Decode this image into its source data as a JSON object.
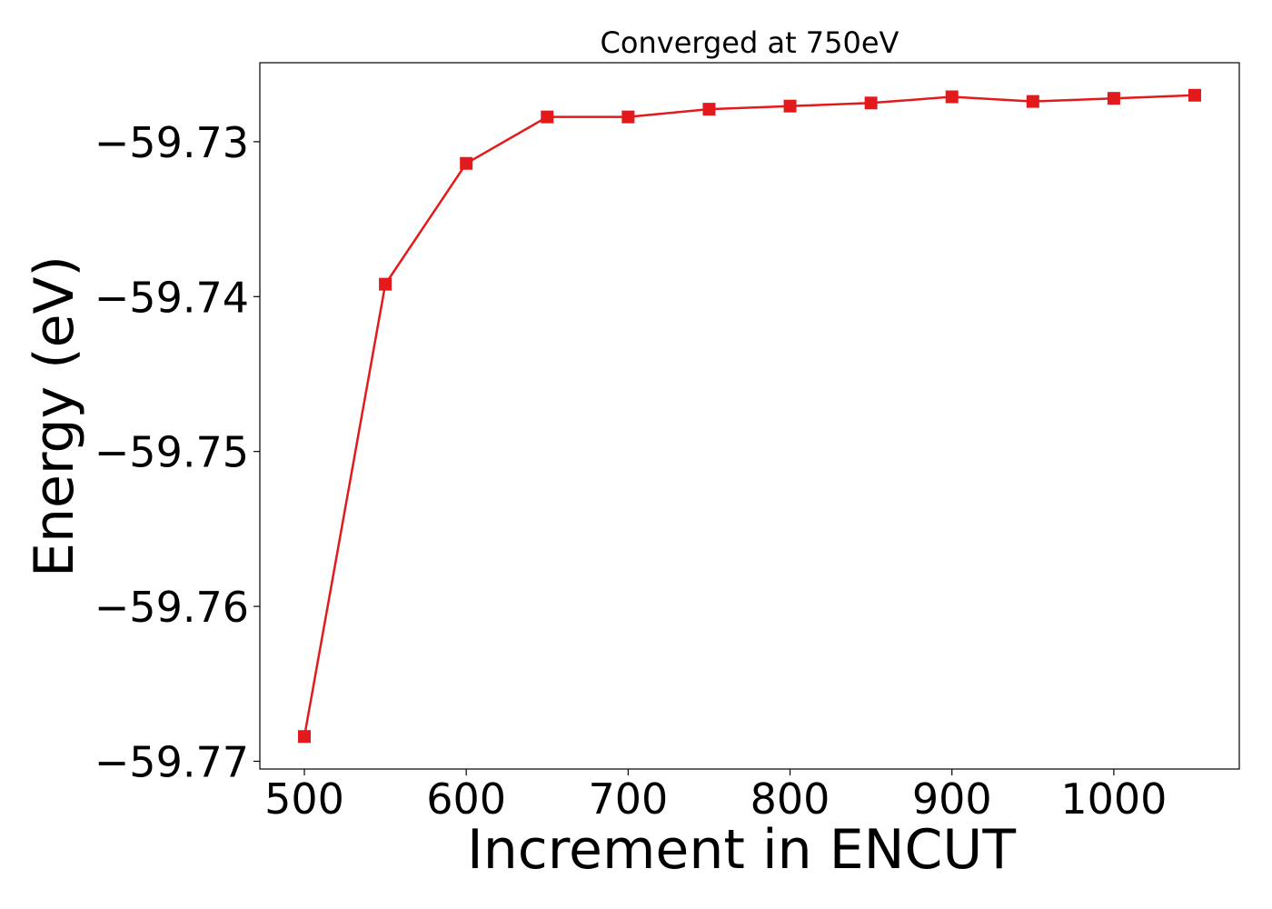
{
  "chart_data": {
    "type": "line",
    "title": "Converged at 750eV",
    "xlabel": "Increment in ENCUT",
    "ylabel": "Energy (eV)",
    "x": [
      500,
      550,
      600,
      650,
      700,
      750,
      800,
      850,
      900,
      950,
      1000,
      1050
    ],
    "series": [
      {
        "values": [
          -59.7684,
          -59.7392,
          -59.7314,
          -59.7284,
          -59.7284,
          -59.7279,
          -59.7277,
          -59.7275,
          -59.7271,
          -59.7274,
          -59.7272,
          -59.727
        ],
        "color": "#e31a1c",
        "marker": "square"
      }
    ],
    "xticks": [
      500,
      600,
      700,
      800,
      900,
      1000
    ],
    "xtick_labels": [
      "500",
      "600",
      "700",
      "800",
      "900",
      "1000"
    ],
    "yticks": [
      -59.73,
      -59.74,
      -59.75,
      -59.76,
      -59.77
    ],
    "ytick_labels": [
      "−59.73",
      "−59.74",
      "−59.75",
      "−59.76",
      "−59.77"
    ],
    "xlim": [
      472.5,
      1077.5
    ],
    "ylim": [
      -59.7705,
      -59.7249
    ],
    "grid": false,
    "legend": "none"
  }
}
